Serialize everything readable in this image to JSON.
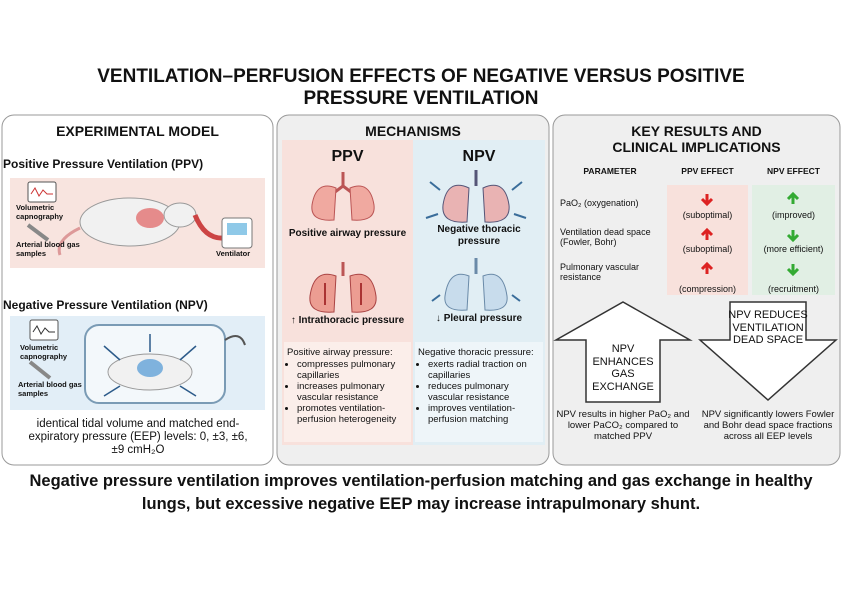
{
  "title": [
    "VENTILATION–PERFUSION EFFECTS OF NEGATIVE VERSUS POSITIVE",
    "PRESSURE VENTILATION"
  ],
  "experimental_model": {
    "heading": "EXPERIMENTAL MODEL",
    "ppv": {
      "label": "Positive Pressure Ventilation (PPV)",
      "capnography": "Volumetric capnography",
      "blood_gas": "Arterial blood gas samples",
      "ventilator": "Ventilator"
    },
    "npv": {
      "label": "Negative Pressure Ventilation (NPV)",
      "capnography": "Volumetric capnography",
      "blood_gas": "Arterial blood gas samples"
    },
    "note": "identical tidal volume and matched end-expiratory pressure (EEP) levels: 0, ±3, ±6, ±9 cmH₂O"
  },
  "mechanisms": {
    "heading": "MECHANISMS",
    "ppv": {
      "title": "PPV",
      "top_label": "Positive airway pressure",
      "bottom_label": "↑ Intrathoracic pressure",
      "summary_head": "Positive airway pressure:",
      "bullets": [
        "compresses pulmonary capillaries",
        "increases pulmonary vascular resistance",
        "promotes ventilation-perfusion heterogeneity"
      ]
    },
    "npv": {
      "title": "NPV",
      "top_label": "Negative thoracic pressure",
      "bottom_label": "↓ Pleural pressure",
      "summary_head": "Negative thoracic pressure:",
      "bullets": [
        "exerts radial traction on capillaries",
        "reduces pulmonary vascular resistance",
        "improves ventilation-perfusion matching"
      ]
    }
  },
  "key_results": {
    "heading": [
      "KEY RESULTS AND",
      "CLINICAL IMPLICATIONS"
    ],
    "table": {
      "headers": [
        "PARAMETER",
        "PPV EFFECT",
        "NPV EFFECT"
      ],
      "rows": [
        [
          "PaO₂ (oxygenation)",
          "(suboptimal)",
          "(improved)"
        ],
        [
          "Ventilation dead space (Fowler, Bohr)",
          "(suboptimal)",
          "(more efficient)"
        ],
        [
          "Pulmonary vascular resistance",
          "(compression)",
          "(recruitment)"
        ]
      ]
    },
    "up_arrow": "NPV ENHANCES GAS EXCHANGE",
    "down_arrow": "NPV REDUCES VENTILATION DEAD SPACE",
    "up_note": "NPV results in higher PaO₂ and lower PaCO₂ compared to matched PPV",
    "down_note": "NPV significantly lowers Fowler and Bohr dead space fractions across all EEP levels"
  },
  "conclusion": "Negative pressure ventilation improves ventilation-perfusion matching and gas exchange in healthy lungs, but excessive negative EEP may increase intrapulmonary shunt."
}
